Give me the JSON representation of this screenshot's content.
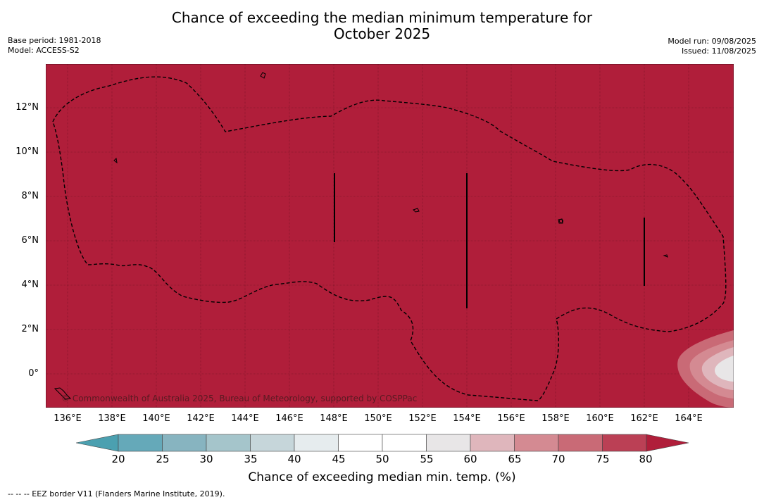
{
  "header": {
    "title_line1": "Chance of exceeding the median minimum temperature for",
    "title_line2": "October 2025",
    "base_period": "Base period: 1981-2018",
    "model": "Model: ACCESS-S2",
    "model_run": "Model run: 09/08/2025",
    "issued": "Issued: 11/08/2025"
  },
  "map": {
    "background_color": "#b01e3a",
    "copyright": "© Commonwealth of Australia 2025, Bureau of Meteorology, supported by COSPPac",
    "lat_ticks": [
      "12°N",
      "10°N",
      "8°N",
      "6°N",
      "4°N",
      "2°N",
      "0°"
    ],
    "lon_ticks": [
      "136°E",
      "138°E",
      "140°E",
      "142°E",
      "144°E",
      "146°E",
      "148°E",
      "150°E",
      "152°E",
      "154°E",
      "156°E",
      "158°E",
      "160°E",
      "162°E",
      "164°E"
    ]
  },
  "colorbar": {
    "ticks": [
      "20",
      "25",
      "30",
      "35",
      "40",
      "45",
      "50",
      "55",
      "60",
      "65",
      "70",
      "75",
      "80"
    ],
    "colors": [
      "#65a9b9",
      "#87b4c0",
      "#a5c5cb",
      "#c6d6da",
      "#e6ecee",
      "#ffffff",
      "#ffffff",
      "#e8e6e7",
      "#dfb6bc",
      "#d48a92",
      "#c96a76",
      "#bb4055"
    ],
    "under_color": "#4ba0b0",
    "over_color": "#b01e3a",
    "label": "Chance of exceeding median min. temp. (%)"
  },
  "footnote": "--  --  -- EEZ border V11 (Flanders Marine Institute, 2019)."
}
